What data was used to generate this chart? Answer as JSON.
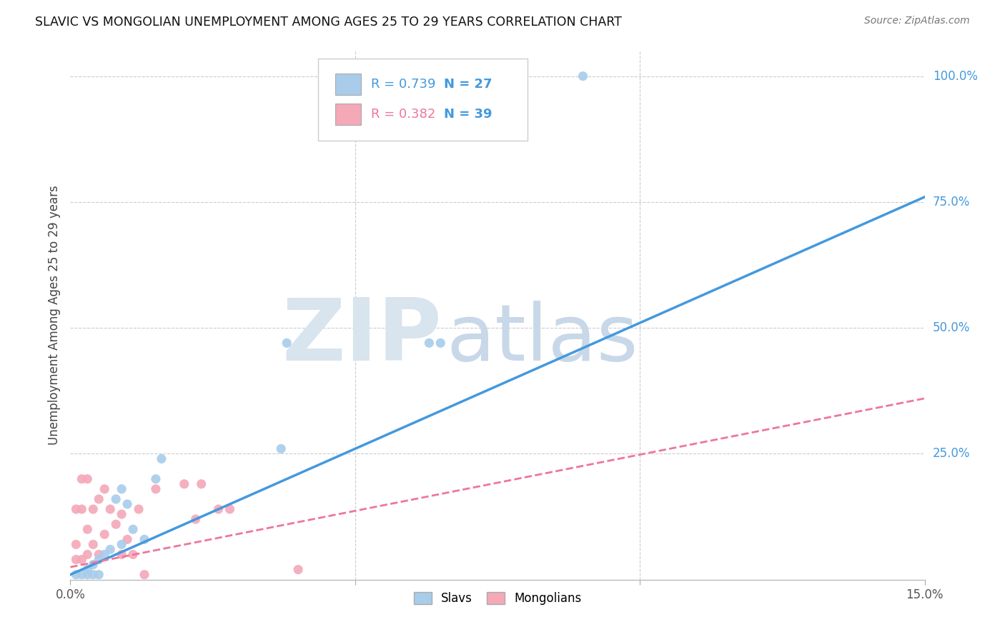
{
  "title": "SLAVIC VS MONGOLIAN UNEMPLOYMENT AMONG AGES 25 TO 29 YEARS CORRELATION CHART",
  "source": "Source: ZipAtlas.com",
  "ylabel_label": "Unemployment Among Ages 25 to 29 years",
  "xlim": [
    0.0,
    0.15
  ],
  "ylim": [
    0.0,
    1.05
  ],
  "ytick_labels_right": [
    "25.0%",
    "50.0%",
    "75.0%",
    "100.0%"
  ],
  "yticks_right": [
    0.25,
    0.5,
    0.75,
    1.0
  ],
  "slavs_R": "0.739",
  "slavs_N": "27",
  "mongolians_R": "0.382",
  "mongolians_N": "39",
  "slavs_color": "#A8CCEA",
  "mongolians_color": "#F4A8B8",
  "trendline_slavs_color": "#4499DD",
  "trendline_mongolians_color": "#EE7799",
  "background_color": "#FFFFFF",
  "grid_color": "#CCCCCC",
  "watermark_zip": "ZIP",
  "watermark_atlas": "atlas",
  "watermark_color": "#D8E4EE",
  "slavs_trendline_x": [
    0.0,
    0.15
  ],
  "slavs_trendline_y": [
    0.01,
    0.76
  ],
  "mongolians_trendline_x": [
    0.0,
    0.15
  ],
  "mongolians_trendline_y": [
    0.025,
    0.36
  ],
  "slavs_x": [
    0.001,
    0.002,
    0.003,
    0.003,
    0.004,
    0.004,
    0.005,
    0.005,
    0.006,
    0.007,
    0.008,
    0.009,
    0.009,
    0.01,
    0.011,
    0.013,
    0.015,
    0.016,
    0.037,
    0.038,
    0.063,
    0.065,
    0.09
  ],
  "slavs_y": [
    0.01,
    0.01,
    0.02,
    0.01,
    0.03,
    0.01,
    0.04,
    0.01,
    0.05,
    0.06,
    0.16,
    0.07,
    0.18,
    0.15,
    0.1,
    0.08,
    0.2,
    0.24,
    0.26,
    0.47,
    0.47,
    0.47,
    1.0
  ],
  "mongolians_x": [
    0.001,
    0.001,
    0.001,
    0.002,
    0.002,
    0.002,
    0.003,
    0.003,
    0.003,
    0.004,
    0.004,
    0.005,
    0.005,
    0.006,
    0.006,
    0.007,
    0.008,
    0.009,
    0.009,
    0.01,
    0.011,
    0.012,
    0.013,
    0.015,
    0.02,
    0.022,
    0.023,
    0.026,
    0.028,
    0.04
  ],
  "mongolians_y": [
    0.04,
    0.07,
    0.14,
    0.04,
    0.14,
    0.2,
    0.05,
    0.1,
    0.2,
    0.07,
    0.14,
    0.05,
    0.16,
    0.09,
    0.18,
    0.14,
    0.11,
    0.05,
    0.13,
    0.08,
    0.05,
    0.14,
    0.01,
    0.18,
    0.19,
    0.12,
    0.19,
    0.14,
    0.14,
    0.02
  ]
}
